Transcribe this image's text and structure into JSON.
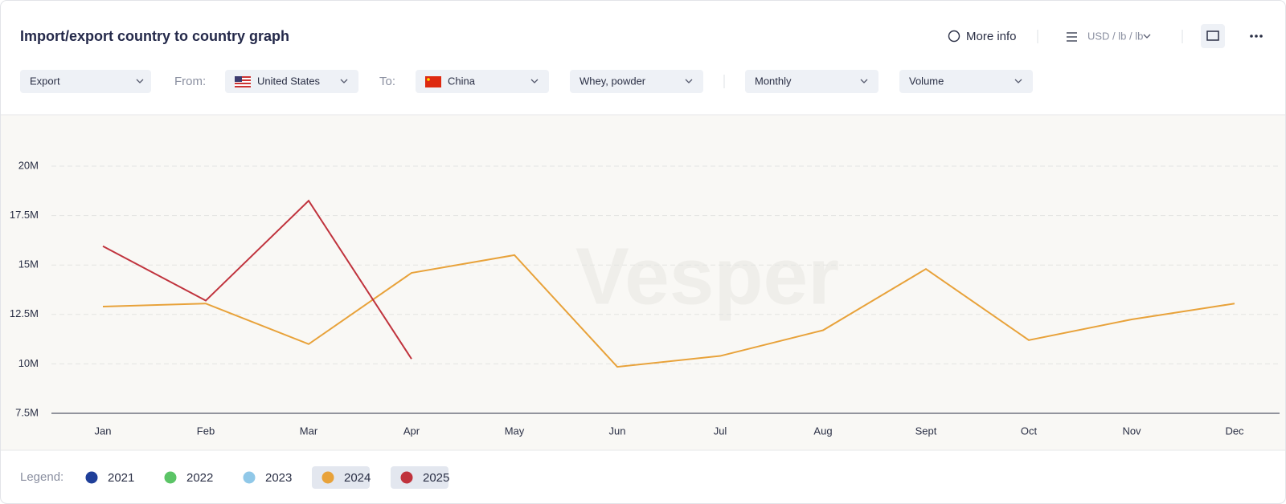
{
  "header": {
    "title": "Import/export country to country graph",
    "more_info": "More info",
    "units": "USD / lb / lb"
  },
  "filters": {
    "flow": "Export",
    "from_label": "From:",
    "from": "United States",
    "to_label": "To:",
    "to": "China",
    "product": "Whey, powder",
    "frequency": "Monthly",
    "measure": "Volume"
  },
  "watermark": "Vesper",
  "legend_label": "Legend:",
  "chart_data": {
    "type": "line",
    "categories": [
      "Jan",
      "Feb",
      "Mar",
      "Apr",
      "May",
      "Jun",
      "Jul",
      "Aug",
      "Sept",
      "Oct",
      "Nov",
      "Dec"
    ],
    "series": [
      {
        "name": "2021",
        "color": "#1f3f99",
        "active": false,
        "values": [
          null,
          null,
          null,
          null,
          null,
          null,
          null,
          null,
          null,
          null,
          null,
          null
        ]
      },
      {
        "name": "2022",
        "color": "#5bc466",
        "active": false,
        "values": [
          null,
          null,
          null,
          null,
          null,
          null,
          null,
          null,
          null,
          null,
          null,
          null
        ]
      },
      {
        "name": "2023",
        "color": "#90c8e8",
        "active": false,
        "values": [
          null,
          null,
          null,
          null,
          null,
          null,
          null,
          null,
          null,
          null,
          null,
          null
        ]
      },
      {
        "name": "2024",
        "color": "#e8a23a",
        "active": true,
        "values": [
          12900000,
          13050000,
          11000000,
          14600000,
          15500000,
          9850000,
          10400000,
          11700000,
          14800000,
          11200000,
          12250000,
          13050000
        ]
      },
      {
        "name": "2025",
        "color": "#c0333d",
        "active": true,
        "values": [
          15950000,
          13200000,
          18250000,
          10250000,
          null,
          null,
          null,
          null,
          null,
          null,
          null,
          null
        ]
      }
    ],
    "ylim": [
      7500000,
      20000000
    ],
    "yticks": [
      {
        "value": 7500000,
        "label": "7.5M"
      },
      {
        "value": 10000000,
        "label": "10M"
      },
      {
        "value": 12500000,
        "label": "12.5M"
      },
      {
        "value": 15000000,
        "label": "15M"
      },
      {
        "value": 17500000,
        "label": "17.5M"
      },
      {
        "value": 20000000,
        "label": "20M"
      }
    ],
    "grid": true
  }
}
